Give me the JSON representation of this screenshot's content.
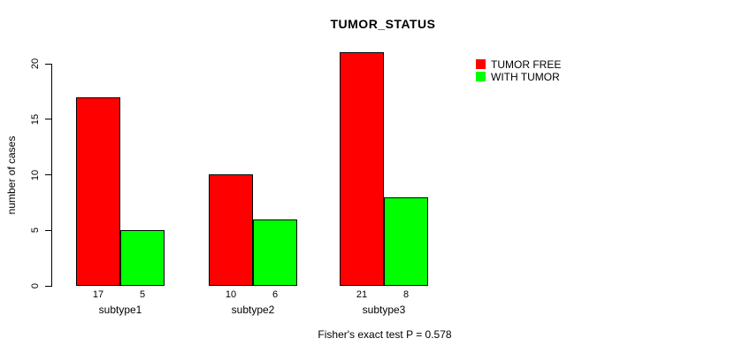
{
  "title": "TUMOR_STATUS",
  "ylabel": "number of cases",
  "footer": "Fisher's exact test P = 0.578",
  "legend": [
    {
      "label": "TUMOR FREE",
      "color": "#ff0000"
    },
    {
      "label": "WITH TUMOR",
      "color": "#00ff00"
    }
  ],
  "chart_data": {
    "type": "bar",
    "title": "TUMOR_STATUS",
    "xlabel": "",
    "ylabel": "number of cases",
    "categories": [
      "subtype1",
      "subtype2",
      "subtype3"
    ],
    "series": [
      {
        "name": "TUMOR FREE",
        "color": "#ff0000",
        "values": [
          17,
          10,
          21
        ]
      },
      {
        "name": "WITH TUMOR",
        "color": "#00ff00",
        "values": [
          5,
          6,
          8
        ]
      }
    ],
    "bar_value_labels": [
      [
        "17",
        "5"
      ],
      [
        "10",
        "6"
      ],
      [
        "21",
        "8"
      ]
    ],
    "ylim": [
      0,
      20
    ],
    "yticks": [
      0,
      5,
      10,
      15,
      20
    ],
    "grid": false,
    "legend_position": "top-right",
    "annotation": "Fisher's exact test P = 0.578"
  }
}
